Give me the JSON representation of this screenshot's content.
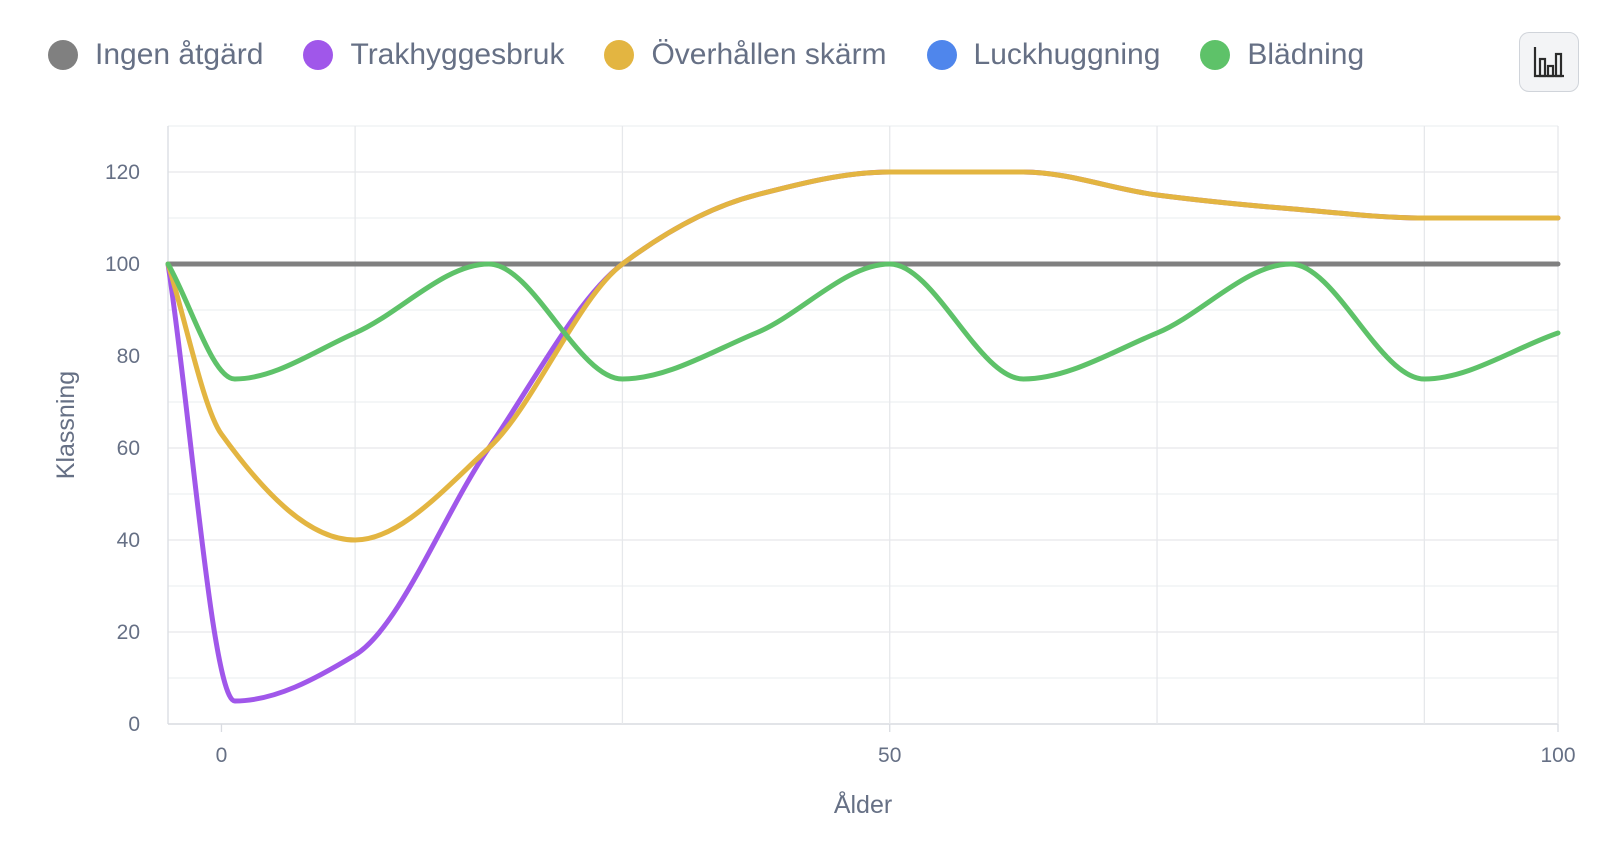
{
  "legend": {
    "items": [
      {
        "label": "Ingen åtgärd",
        "color": "#808080"
      },
      {
        "label": "Trakhyggesbruk",
        "color": "#a057ea"
      },
      {
        "label": "Överhållen skärm",
        "color": "#e3b541"
      },
      {
        "label": "Luckhuggning",
        "color": "#4f86ec"
      },
      {
        "label": "Blädning",
        "color": "#5ec269"
      }
    ]
  },
  "toolbar": {
    "chart_type_icon": "bar-chart-icon"
  },
  "chart_data": {
    "type": "line",
    "xlabel": "Ålder",
    "ylabel": "Klassning",
    "xlim": [
      -4,
      100
    ],
    "ylim": [
      0,
      130
    ],
    "xticks": [
      0,
      50,
      100
    ],
    "yticks": [
      0,
      20,
      40,
      60,
      80,
      100,
      120
    ],
    "grid": true,
    "legend_position": "top",
    "series": [
      {
        "name": "Ingen åtgärd",
        "color": "#808080",
        "x": [
          -4,
          100
        ],
        "y": [
          100,
          100
        ]
      },
      {
        "name": "Trakhyggesbruk",
        "color": "#a057ea",
        "x": [
          -4,
          1,
          10,
          20,
          30,
          40,
          50,
          60,
          70,
          80,
          90,
          100
        ],
        "y": [
          100,
          5,
          15,
          60,
          100,
          115,
          120,
          120,
          115,
          112,
          110,
          110
        ]
      },
      {
        "name": "Överhållen skärm",
        "color": "#e3b541",
        "x": [
          -4,
          0,
          10,
          20,
          30,
          40,
          50,
          60,
          70,
          80,
          90,
          100
        ],
        "y": [
          100,
          63,
          40,
          60,
          100,
          115,
          120,
          120,
          115,
          112,
          110,
          110
        ]
      },
      {
        "name": "Luckhuggning",
        "color": "#4f86ec",
        "x": [],
        "y": []
      },
      {
        "name": "Blädning",
        "color": "#5ec269",
        "x": [
          -4,
          1,
          10,
          20,
          30,
          40,
          50,
          60,
          70,
          80,
          90,
          100
        ],
        "y": [
          100,
          75,
          85,
          100,
          75,
          85,
          100,
          75,
          85,
          100,
          75,
          85
        ]
      }
    ]
  }
}
